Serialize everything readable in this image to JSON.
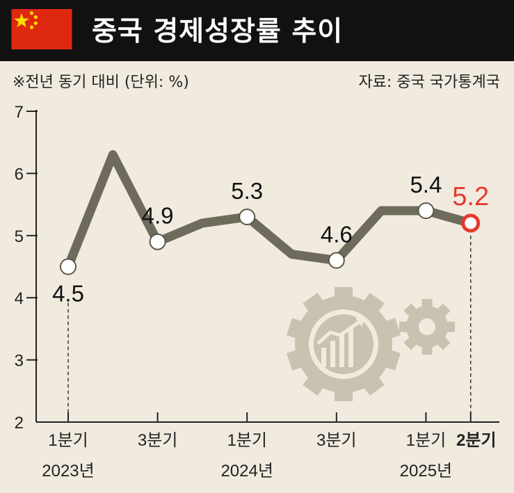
{
  "header": {
    "title": "중국 경제성장률 추이"
  },
  "note": "※전년 동기 대비 (단위: %)",
  "source": "자료: 중국 국가통계국",
  "icons": {
    "flag": "china-flag-icon",
    "gears": "gears-growth-chart-icon"
  },
  "colors": {
    "background": "#f1ebdf",
    "header": "#111111",
    "line": "#6e6b5c",
    "highlight": "#e53a2f",
    "gear": "#c9c2b0",
    "flag_red": "#de2910",
    "flag_star": "#ffde00"
  },
  "chart_data": {
    "type": "line",
    "title": "",
    "xlabel": "",
    "ylabel": "",
    "ylim": [
      2,
      7
    ],
    "yticks": [
      "7",
      "6",
      "5",
      "4",
      "3",
      "2"
    ],
    "x_tick_labels": [
      {
        "quarter": "1분기",
        "year": "2023년"
      },
      {
        "quarter": "3분기",
        "year": ""
      },
      {
        "quarter": "1분기",
        "year": "2024년"
      },
      {
        "quarter": "3분기",
        "year": ""
      },
      {
        "quarter": "1분기",
        "year": "2025년"
      },
      {
        "quarter": "2분기",
        "year": ""
      }
    ],
    "series": [
      {
        "values": [
          4.5,
          6.3,
          4.9,
          5.2,
          5.3,
          4.7,
          4.6,
          5.4,
          5.4,
          5.2
        ],
        "labels": [
          "4.5",
          "",
          "4.9",
          "",
          "5.3",
          "",
          "4.6",
          "",
          "5.4",
          "5.2"
        ],
        "markers": [
          true,
          false,
          true,
          false,
          true,
          false,
          true,
          false,
          true,
          true
        ]
      }
    ],
    "highlight_index": 9
  }
}
